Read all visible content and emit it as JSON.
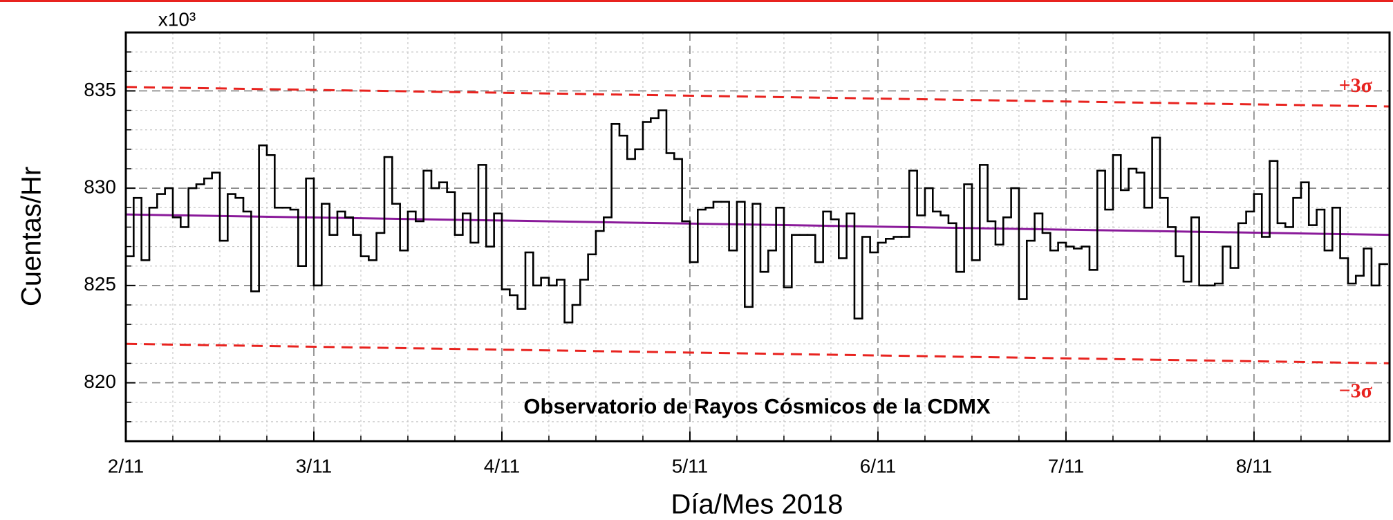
{
  "chart_data": {
    "type": "step",
    "annotation": "Observatorio de Rayos Cósmicos de la CDMX",
    "xlabel": "Día/Mes 2018",
    "ylabel": "Cuentas/Hr",
    "y_multiplier": "x10³",
    "xlim": [
      0,
      161.3
    ],
    "ylim": [
      817,
      838
    ],
    "xticks": [
      {
        "value": 0,
        "label": "2/11"
      },
      {
        "value": 24,
        "label": "3/11"
      },
      {
        "value": 48,
        "label": "4/11"
      },
      {
        "value": 72,
        "label": "5/11"
      },
      {
        "value": 96,
        "label": "6/11"
      },
      {
        "value": 120,
        "label": "7/11"
      },
      {
        "value": 144,
        "label": "8/11"
      }
    ],
    "yticks": [
      820,
      825,
      830,
      835
    ],
    "xminor": [
      6,
      12,
      18,
      30,
      36,
      42,
      54,
      60,
      66,
      78,
      84,
      90,
      102,
      108,
      114,
      126,
      132,
      138,
      150,
      156
    ],
    "yminor": [
      818,
      819,
      821,
      822,
      823,
      824,
      826,
      827,
      828,
      829,
      831,
      832,
      833,
      834,
      836,
      837
    ],
    "grid": true,
    "series": [
      {
        "color": "#000000",
        "x": [
          0,
          1,
          2,
          3,
          4,
          5,
          6,
          7,
          8,
          9,
          10,
          11,
          12,
          13,
          14,
          15,
          16,
          17,
          18,
          19,
          20,
          21,
          22,
          23,
          24,
          25,
          26,
          27,
          28,
          29,
          30,
          31,
          32,
          33,
          34,
          35,
          36,
          37,
          38,
          39,
          40,
          41,
          42,
          43,
          44,
          45,
          46,
          47,
          48,
          49,
          50,
          51,
          52,
          53,
          54,
          55,
          56,
          57,
          58,
          59,
          60,
          61,
          62,
          63,
          64,
          65,
          66,
          67,
          68,
          69,
          70,
          71,
          72,
          73,
          74,
          75,
          76,
          77,
          78,
          79,
          80,
          81,
          82,
          83,
          84,
          85,
          86,
          87,
          88,
          89,
          90,
          91,
          92,
          93,
          94,
          95,
          96,
          97,
          98,
          99,
          100,
          101,
          102,
          103,
          104,
          105,
          106,
          107,
          108,
          109,
          110,
          111,
          112,
          113,
          114,
          115,
          116,
          117,
          118,
          119,
          120,
          121,
          122,
          123,
          124,
          125,
          126,
          127,
          128,
          129,
          130,
          131,
          132,
          133,
          134,
          135,
          136,
          137,
          138,
          139,
          140,
          141,
          142,
          143,
          144,
          145,
          146,
          147,
          148,
          149,
          150,
          151,
          152,
          153,
          154,
          155,
          156,
          157,
          158,
          159,
          160
        ],
        "values": [
          826.5,
          829.5,
          826.3,
          829,
          829.7,
          830,
          828.5,
          828,
          830,
          830.2,
          830.5,
          830.8,
          827.3,
          829.7,
          829.5,
          828.8,
          824.7,
          832.2,
          831.7,
          829,
          829,
          828.9,
          826,
          830.5,
          825,
          829.2,
          827.6,
          828.8,
          828.5,
          827.6,
          826.5,
          826.3,
          827.7,
          831.6,
          829.2,
          826.8,
          828.8,
          828.3,
          830.9,
          830,
          830.3,
          829.8,
          827.6,
          828.7,
          827.2,
          831.2,
          827,
          828.7,
          824.8,
          824.5,
          823.8,
          826.7,
          825,
          825.4,
          825,
          825.3,
          823.1,
          824,
          825.3,
          826.6,
          827.8,
          828.5,
          833.3,
          832.7,
          831.5,
          832,
          833.4,
          833.6,
          834,
          831.8,
          831.5,
          828.3,
          826.2,
          828.9,
          829,
          829.3,
          829.3,
          826.8,
          829.3,
          823.9,
          829.2,
          825.7,
          826.8,
          829,
          824.9,
          827.6,
          827.6,
          827.6,
          826.2,
          828.8,
          828.4,
          826.4,
          828.7,
          823.3,
          827.5,
          826.7,
          827.2,
          827.4,
          827.5,
          827.5,
          830.9,
          828.6,
          830,
          828.8,
          828.6,
          828.2,
          825.7,
          830.2,
          826.3,
          831.2,
          828.3,
          827.1,
          828.5,
          830,
          824.3,
          827.3,
          828.7,
          827.7,
          826.8,
          827.2,
          827,
          826.9,
          827,
          825.8,
          830.9,
          828.9,
          831.7,
          829.9,
          831,
          830.8,
          829,
          832.6,
          829.5,
          828,
          826.5,
          825.2,
          828.5,
          825,
          825,
          825.1,
          827,
          825.9,
          828.2,
          828.8,
          829.7,
          827.5,
          831.4,
          828.2,
          828,
          829.5,
          830.3,
          828.1,
          828.9,
          826.8,
          829,
          826.4,
          825.1,
          825.5,
          826.9,
          825,
          826.1
        ]
      }
    ],
    "reference_lines": [
      {
        "name": "+3σ",
        "color": "#e8231f",
        "dash": true,
        "x": [
          0,
          161.3
        ],
        "values": [
          835.2,
          834.2
        ]
      },
      {
        "name": "−3σ",
        "color": "#e8231f",
        "dash": true,
        "x": [
          0,
          161.3
        ],
        "values": [
          822,
          821
        ]
      },
      {
        "color": "#8a1a9a",
        "dash": false,
        "x": [
          0,
          161.3
        ],
        "values": [
          828.65,
          827.6
        ]
      }
    ]
  }
}
